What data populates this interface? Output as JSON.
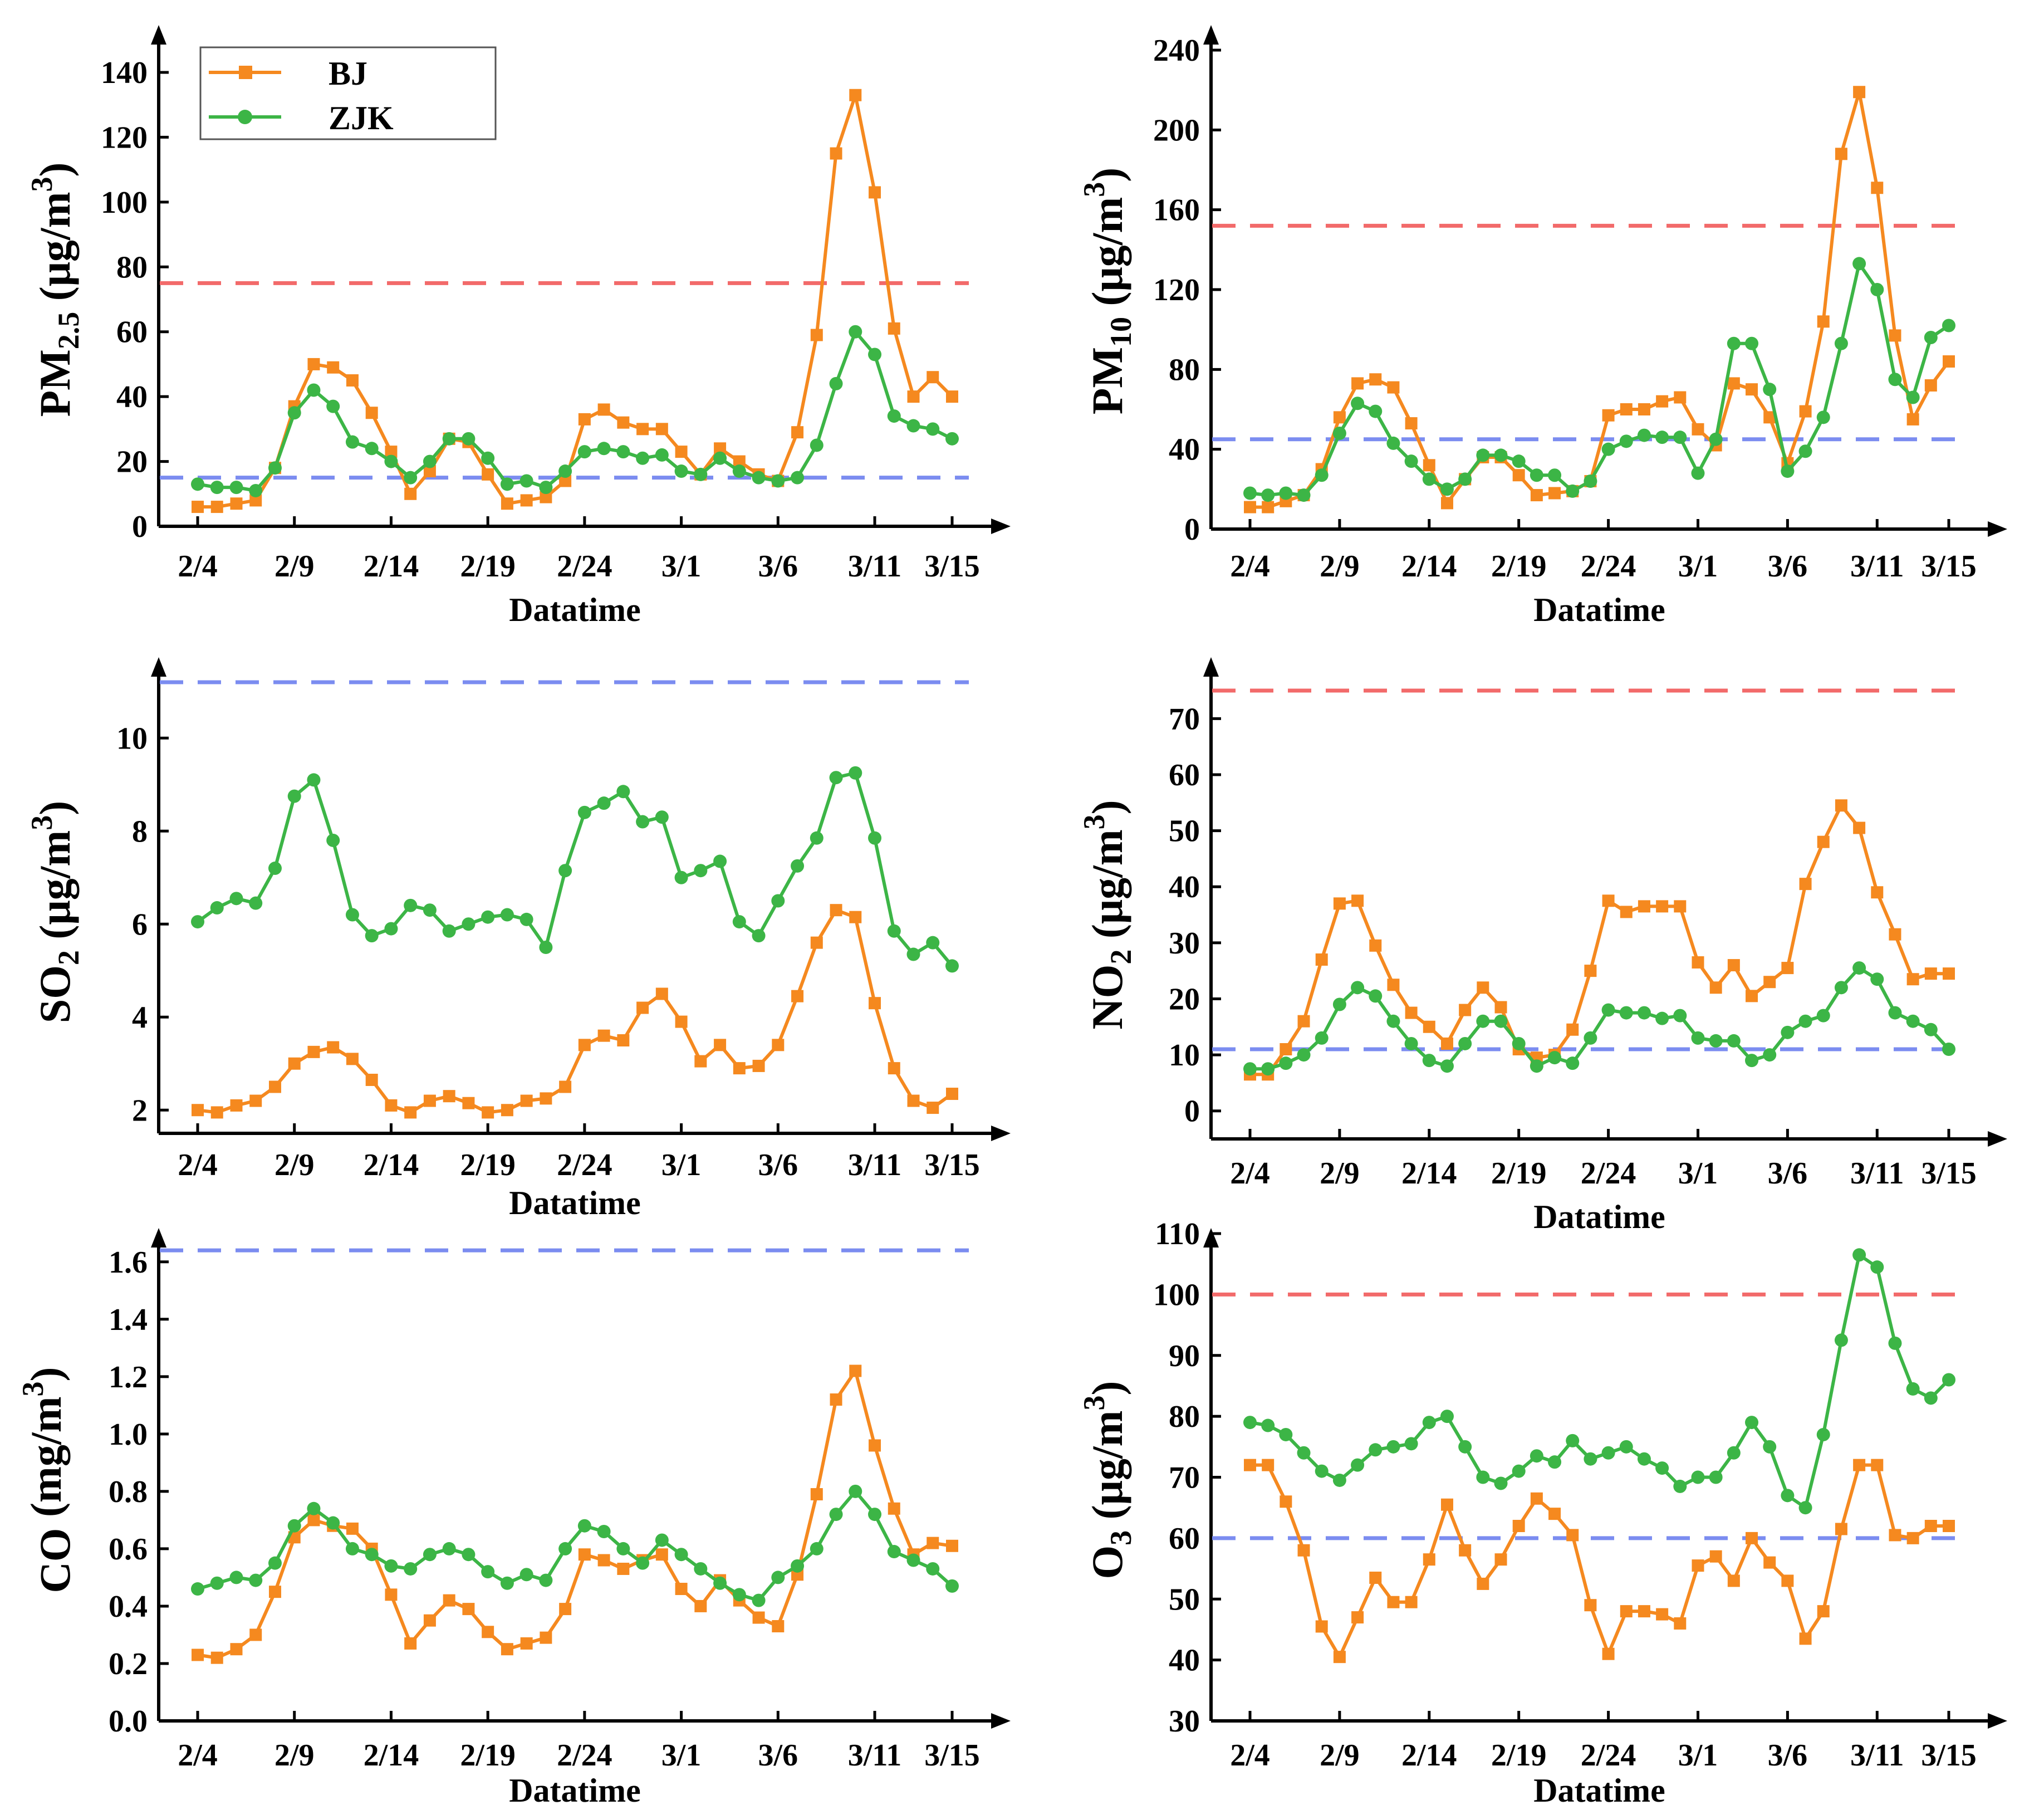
{
  "legend": {
    "entries": [
      {
        "name": "BJ",
        "color": "#f5891f",
        "marker": "square"
      },
      {
        "name": "ZJK",
        "color": "#3cb546",
        "marker": "circle"
      }
    ]
  },
  "colors": {
    "BJ": "#f5891f",
    "ZJK": "#3cb546",
    "ref_red": "#f26a6a",
    "ref_blue": "#7b8cf0"
  },
  "chart_data": [
    {
      "id": "pm25",
      "type": "line",
      "ylabel_main": "PM",
      "ylabel_sub": "2.5",
      "ylabel_unit": " (μg/m",
      "ylabel_sup": "3",
      "ylabel_end": ")",
      "xlabel": "Datatime",
      "xticks": [
        "2/4",
        "2/9",
        "2/14",
        "2/19",
        "2/24",
        "3/1",
        "3/6",
        "3/11",
        "3/15"
      ],
      "yticks": [
        "0",
        "20",
        "40",
        "60",
        "80",
        "100",
        "120",
        "140"
      ],
      "ylim": [
        0,
        140
      ],
      "legend": "top-left",
      "ref_lines": [
        {
          "value": 75,
          "color": "red"
        },
        {
          "value": 15,
          "color": "blue"
        }
      ],
      "series": [
        {
          "name": "BJ",
          "values": [
            6,
            6,
            7,
            8,
            18,
            37,
            50,
            49,
            45,
            35,
            23,
            10,
            17,
            27,
            26,
            16,
            7,
            8,
            9,
            14,
            33,
            36,
            32,
            30,
            30,
            23,
            16,
            24,
            20,
            16,
            14,
            29,
            59,
            115,
            133,
            103,
            61,
            40,
            46,
            40
          ]
        },
        {
          "name": "ZJK",
          "values": [
            13,
            12,
            12,
            11,
            18,
            35,
            42,
            37,
            26,
            24,
            20,
            15,
            20,
            27,
            27,
            21,
            13,
            14,
            12,
            17,
            23,
            24,
            23,
            21,
            22,
            17,
            16,
            21,
            17,
            15,
            14,
            15,
            25,
            44,
            60,
            53,
            34,
            31,
            30,
            27
          ]
        }
      ]
    },
    {
      "id": "pm10",
      "type": "line",
      "ylabel_main": "PM",
      "ylabel_sub": "10",
      "ylabel_unit": " (μg/m",
      "ylabel_sup": "3",
      "ylabel_end": ")",
      "xlabel": "Datatime",
      "xticks": [
        "2/4",
        "2/9",
        "2/14",
        "2/19",
        "2/24",
        "3/1",
        "3/6",
        "3/11",
        "3/15"
      ],
      "yticks": [
        "0",
        "40",
        "80",
        "120",
        "160",
        "200",
        "240"
      ],
      "ylim": [
        0,
        240
      ],
      "ref_lines": [
        {
          "value": 152,
          "color": "red"
        },
        {
          "value": 45,
          "color": "blue"
        }
      ],
      "series": [
        {
          "name": "BJ",
          "values": [
            11,
            11,
            14,
            17,
            30,
            56,
            73,
            75,
            71,
            53,
            32,
            13,
            25,
            36,
            36,
            27,
            17,
            18,
            19,
            24,
            57,
            60,
            60,
            64,
            66,
            50,
            42,
            73,
            70,
            56,
            33,
            59,
            104,
            188,
            219,
            171,
            97,
            55,
            72,
            84
          ]
        },
        {
          "name": "ZJK",
          "values": [
            18,
            17,
            18,
            17,
            27,
            48,
            63,
            59,
            43,
            34,
            25,
            20,
            25,
            37,
            37,
            34,
            27,
            27,
            19,
            24,
            40,
            44,
            47,
            46,
            46,
            28,
            45,
            93,
            93,
            70,
            29,
            39,
            56,
            93,
            133,
            120,
            75,
            66,
            96,
            102
          ]
        }
      ]
    },
    {
      "id": "so2",
      "type": "line",
      "ylabel_main": "SO",
      "ylabel_sub": "2",
      "ylabel_unit": " (μg/m",
      "ylabel_sup": "3",
      "ylabel_end": ")",
      "xlabel": "Datatime",
      "xticks": [
        "2/4",
        "2/9",
        "2/14",
        "2/19",
        "2/24",
        "3/1",
        "3/6",
        "3/11",
        "3/15"
      ],
      "yticks": [
        "2",
        "4",
        "6",
        "8",
        "10"
      ],
      "ylim": [
        1.5,
        11.5
      ],
      "ref_lines": [
        {
          "value": 11.2,
          "color": "blue"
        }
      ],
      "series": [
        {
          "name": "BJ",
          "values": [
            2.0,
            1.95,
            2.1,
            2.2,
            2.5,
            3.0,
            3.25,
            3.35,
            3.1,
            2.65,
            2.1,
            1.95,
            2.2,
            2.3,
            2.15,
            1.95,
            2.0,
            2.2,
            2.25,
            2.5,
            3.4,
            3.6,
            3.5,
            4.2,
            4.5,
            3.9,
            3.05,
            3.4,
            2.9,
            2.95,
            3.4,
            4.45,
            5.6,
            6.3,
            6.15,
            4.3,
            2.9,
            2.2,
            2.05,
            2.35
          ]
        },
        {
          "name": "ZJK",
          "values": [
            6.05,
            6.35,
            6.55,
            6.45,
            7.2,
            8.75,
            9.1,
            7.8,
            6.2,
            5.75,
            5.9,
            6.4,
            6.3,
            5.85,
            6.0,
            6.15,
            6.2,
            6.1,
            5.5,
            7.15,
            8.4,
            8.6,
            8.85,
            8.2,
            8.3,
            7.0,
            7.15,
            7.35,
            6.05,
            5.75,
            6.5,
            7.25,
            7.85,
            9.15,
            9.25,
            7.85,
            5.85,
            5.35,
            5.6,
            5.1
          ]
        }
      ]
    },
    {
      "id": "no2",
      "type": "line",
      "ylabel_main": "NO",
      "ylabel_sub": "2",
      "ylabel_unit": " (μg/m",
      "ylabel_sup": "3",
      "ylabel_end": ")",
      "xlabel": "Datatime",
      "xticks": [
        "2/4",
        "2/9",
        "2/14",
        "2/19",
        "2/24",
        "3/1",
        "3/6",
        "3/11",
        "3/15"
      ],
      "yticks": [
        "0",
        "10",
        "20",
        "30",
        "40",
        "50",
        "60",
        "70"
      ],
      "ylim": [
        -5,
        75
      ],
      "ref_lines": [
        {
          "value": 75,
          "color": "red"
        },
        {
          "value": 11,
          "color": "blue"
        }
      ],
      "series": [
        {
          "name": "BJ",
          "values": [
            6.5,
            6.5,
            11,
            16,
            27,
            37,
            37.5,
            29.5,
            22.5,
            17.5,
            15,
            12,
            18,
            22,
            18.5,
            11,
            9.5,
            10,
            14.5,
            25,
            37.5,
            35.5,
            36.5,
            36.5,
            36.5,
            26.5,
            22,
            26,
            20.5,
            23,
            25.5,
            40.5,
            48,
            54.5,
            50.5,
            39,
            31.5,
            23.5,
            24.5,
            24.5
          ]
        },
        {
          "name": "ZJK",
          "values": [
            7.5,
            7.5,
            8.5,
            10,
            13,
            19,
            22,
            20.5,
            16,
            12,
            9,
            8,
            12,
            16,
            16,
            12,
            8,
            9.5,
            8.5,
            13,
            18,
            17.5,
            17.5,
            16.5,
            17,
            13,
            12.5,
            12.5,
            9,
            10,
            14,
            16,
            17,
            22,
            25.5,
            23.5,
            17.5,
            16,
            14.5,
            11
          ]
        }
      ]
    },
    {
      "id": "co",
      "type": "line",
      "ylabel_main": "CO",
      "ylabel_sub": "",
      "ylabel_unit": " (mg/m",
      "ylabel_sup": "3",
      "ylabel_end": ")",
      "xlabel": "Datatime",
      "xticks": [
        "2/4",
        "2/9",
        "2/14",
        "2/19",
        "2/24",
        "3/1",
        "3/6",
        "3/11",
        "3/15"
      ],
      "yticks": [
        "0.0",
        "0.2",
        "0.4",
        "0.6",
        "0.8",
        "1.0",
        "1.2",
        "1.4",
        "1.6"
      ],
      "ylim": [
        0,
        1.65
      ],
      "ref_lines": [
        {
          "value": 1.64,
          "color": "blue"
        }
      ],
      "series": [
        {
          "name": "BJ",
          "values": [
            0.23,
            0.22,
            0.25,
            0.3,
            0.45,
            0.64,
            0.7,
            0.68,
            0.67,
            0.6,
            0.44,
            0.27,
            0.35,
            0.42,
            0.39,
            0.31,
            0.25,
            0.27,
            0.29,
            0.39,
            0.58,
            0.56,
            0.53,
            0.56,
            0.58,
            0.46,
            0.4,
            0.49,
            0.42,
            0.36,
            0.33,
            0.51,
            0.79,
            1.12,
            1.22,
            0.96,
            0.74,
            0.58,
            0.62,
            0.61
          ]
        },
        {
          "name": "ZJK",
          "values": [
            0.46,
            0.48,
            0.5,
            0.49,
            0.55,
            0.68,
            0.74,
            0.69,
            0.6,
            0.58,
            0.54,
            0.53,
            0.58,
            0.6,
            0.58,
            0.52,
            0.48,
            0.51,
            0.49,
            0.6,
            0.68,
            0.66,
            0.6,
            0.55,
            0.63,
            0.58,
            0.53,
            0.48,
            0.44,
            0.42,
            0.5,
            0.54,
            0.6,
            0.72,
            0.8,
            0.72,
            0.59,
            0.56,
            0.53,
            0.47
          ]
        }
      ]
    },
    {
      "id": "o3",
      "type": "line",
      "ylabel_main": "O",
      "ylabel_sub": "3",
      "ylabel_unit": " (μg/m",
      "ylabel_sup": "3",
      "ylabel_end": ")",
      "xlabel": "Datatime",
      "xticks": [
        "2/4",
        "2/9",
        "2/14",
        "2/19",
        "2/24",
        "3/1",
        "3/6",
        "3/11",
        "3/15"
      ],
      "yticks": [
        "30",
        "40",
        "50",
        "60",
        "70",
        "80",
        "90",
        "100",
        "110"
      ],
      "ylim": [
        30,
        110
      ],
      "ref_lines": [
        {
          "value": 100,
          "color": "red"
        },
        {
          "value": 60,
          "color": "blue"
        }
      ],
      "series": [
        {
          "name": "BJ",
          "values": [
            72,
            72,
            66,
            58,
            45.5,
            40.5,
            47,
            53.5,
            49.5,
            49.5,
            56.5,
            65.5,
            58,
            52.5,
            56.5,
            62,
            66.5,
            64,
            60.5,
            49,
            41,
            48,
            48,
            47.5,
            46,
            55.5,
            57,
            53,
            60,
            56,
            53,
            43.5,
            48,
            61.5,
            72,
            72,
            60.5,
            60,
            62,
            62
          ]
        },
        {
          "name": "ZJK",
          "values": [
            79,
            78.5,
            77,
            74,
            71,
            69.5,
            72,
            74.5,
            75,
            75.5,
            79,
            80,
            75,
            70,
            69,
            71,
            73.5,
            72.5,
            76,
            73,
            74,
            75,
            73,
            71.5,
            68.5,
            70,
            70,
            74,
            79,
            75,
            67,
            65,
            77,
            92.5,
            106.5,
            104.5,
            92,
            84.5,
            83,
            86
          ]
        }
      ]
    }
  ]
}
